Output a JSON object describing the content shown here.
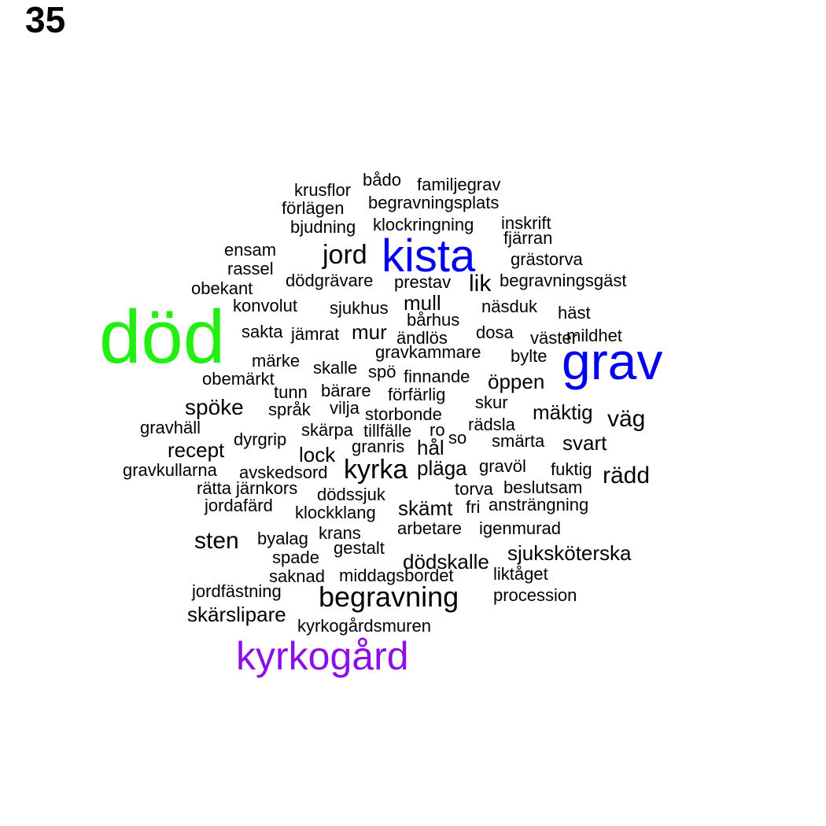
{
  "page_number": "35",
  "colors": {
    "default": "#000000",
    "green": "#22ee11",
    "blue": "#0000ee",
    "purple": "#8e0fe6"
  },
  "words": [
    {
      "text": "död",
      "weight": 6,
      "color": "green"
    },
    {
      "text": "grav",
      "weight": 5,
      "color": "blue"
    },
    {
      "text": "kista",
      "weight": 4,
      "color": "blue"
    },
    {
      "text": "kyrkogård",
      "weight": 3,
      "color": "purple"
    },
    {
      "text": "begravning",
      "weight": 2
    },
    {
      "text": "jord",
      "weight": 2
    },
    {
      "text": "kyrka",
      "weight": 2
    },
    {
      "text": "bådo"
    },
    {
      "text": "familjegrav"
    },
    {
      "text": "krusflor"
    },
    {
      "text": "förlägen"
    },
    {
      "text": "begravningsplats"
    },
    {
      "text": "inskrift"
    },
    {
      "text": "bjudning"
    },
    {
      "text": "klockringning"
    },
    {
      "text": "fjärran"
    },
    {
      "text": "ensam"
    },
    {
      "text": "grästorva"
    },
    {
      "text": "rassel"
    },
    {
      "text": "dödgrävare"
    },
    {
      "text": "prestav"
    },
    {
      "text": "lik"
    },
    {
      "text": "begravningsgäst"
    },
    {
      "text": "obekant"
    },
    {
      "text": "mull"
    },
    {
      "text": "konvolut"
    },
    {
      "text": "sjukhus"
    },
    {
      "text": "näsduk"
    },
    {
      "text": "häst"
    },
    {
      "text": "bårhus"
    },
    {
      "text": "sakta"
    },
    {
      "text": "jämrat"
    },
    {
      "text": "mur"
    },
    {
      "text": "ändlös"
    },
    {
      "text": "dosa"
    },
    {
      "text": "väster"
    },
    {
      "text": "mildhet"
    },
    {
      "text": "gravkammare"
    },
    {
      "text": "märke"
    },
    {
      "text": "bylte"
    },
    {
      "text": "skalle"
    },
    {
      "text": "spö"
    },
    {
      "text": "finnande"
    },
    {
      "text": "obemärkt"
    },
    {
      "text": "öppen"
    },
    {
      "text": "tunn"
    },
    {
      "text": "bärare"
    },
    {
      "text": "förfärlig"
    },
    {
      "text": "spöke"
    },
    {
      "text": "språk"
    },
    {
      "text": "vilja"
    },
    {
      "text": "skur"
    },
    {
      "text": "storbonde"
    },
    {
      "text": "mäktig"
    },
    {
      "text": "väg"
    },
    {
      "text": "gravhäll"
    },
    {
      "text": "skärpa"
    },
    {
      "text": "tillfälle"
    },
    {
      "text": "ro"
    },
    {
      "text": "rädsla"
    },
    {
      "text": "dyrgrip"
    },
    {
      "text": "so"
    },
    {
      "text": "smärta"
    },
    {
      "text": "recept"
    },
    {
      "text": "granris"
    },
    {
      "text": "hål"
    },
    {
      "text": "svart"
    },
    {
      "text": "lock"
    },
    {
      "text": "pläga"
    },
    {
      "text": "gravöl"
    },
    {
      "text": "fuktig"
    },
    {
      "text": "gravkullarna"
    },
    {
      "text": "avskedsord"
    },
    {
      "text": "rädd"
    },
    {
      "text": "rätta"
    },
    {
      "text": "järnkors"
    },
    {
      "text": "torva"
    },
    {
      "text": "beslutsam"
    },
    {
      "text": "dödssjuk"
    },
    {
      "text": "jordafärd"
    },
    {
      "text": "skämt"
    },
    {
      "text": "fri"
    },
    {
      "text": "ansträngning"
    },
    {
      "text": "klockklang"
    },
    {
      "text": "arbetare"
    },
    {
      "text": "igenmurad"
    },
    {
      "text": "krans"
    },
    {
      "text": "sten"
    },
    {
      "text": "byalag"
    },
    {
      "text": "gestalt"
    },
    {
      "text": "sjuksköterska"
    },
    {
      "text": "spade"
    },
    {
      "text": "dödskalle"
    },
    {
      "text": "saknad"
    },
    {
      "text": "middagsbordet"
    },
    {
      "text": "liktåget"
    },
    {
      "text": "jordfästning"
    },
    {
      "text": "procession"
    },
    {
      "text": "skärslipare"
    },
    {
      "text": "kyrkogårdsmuren"
    }
  ]
}
